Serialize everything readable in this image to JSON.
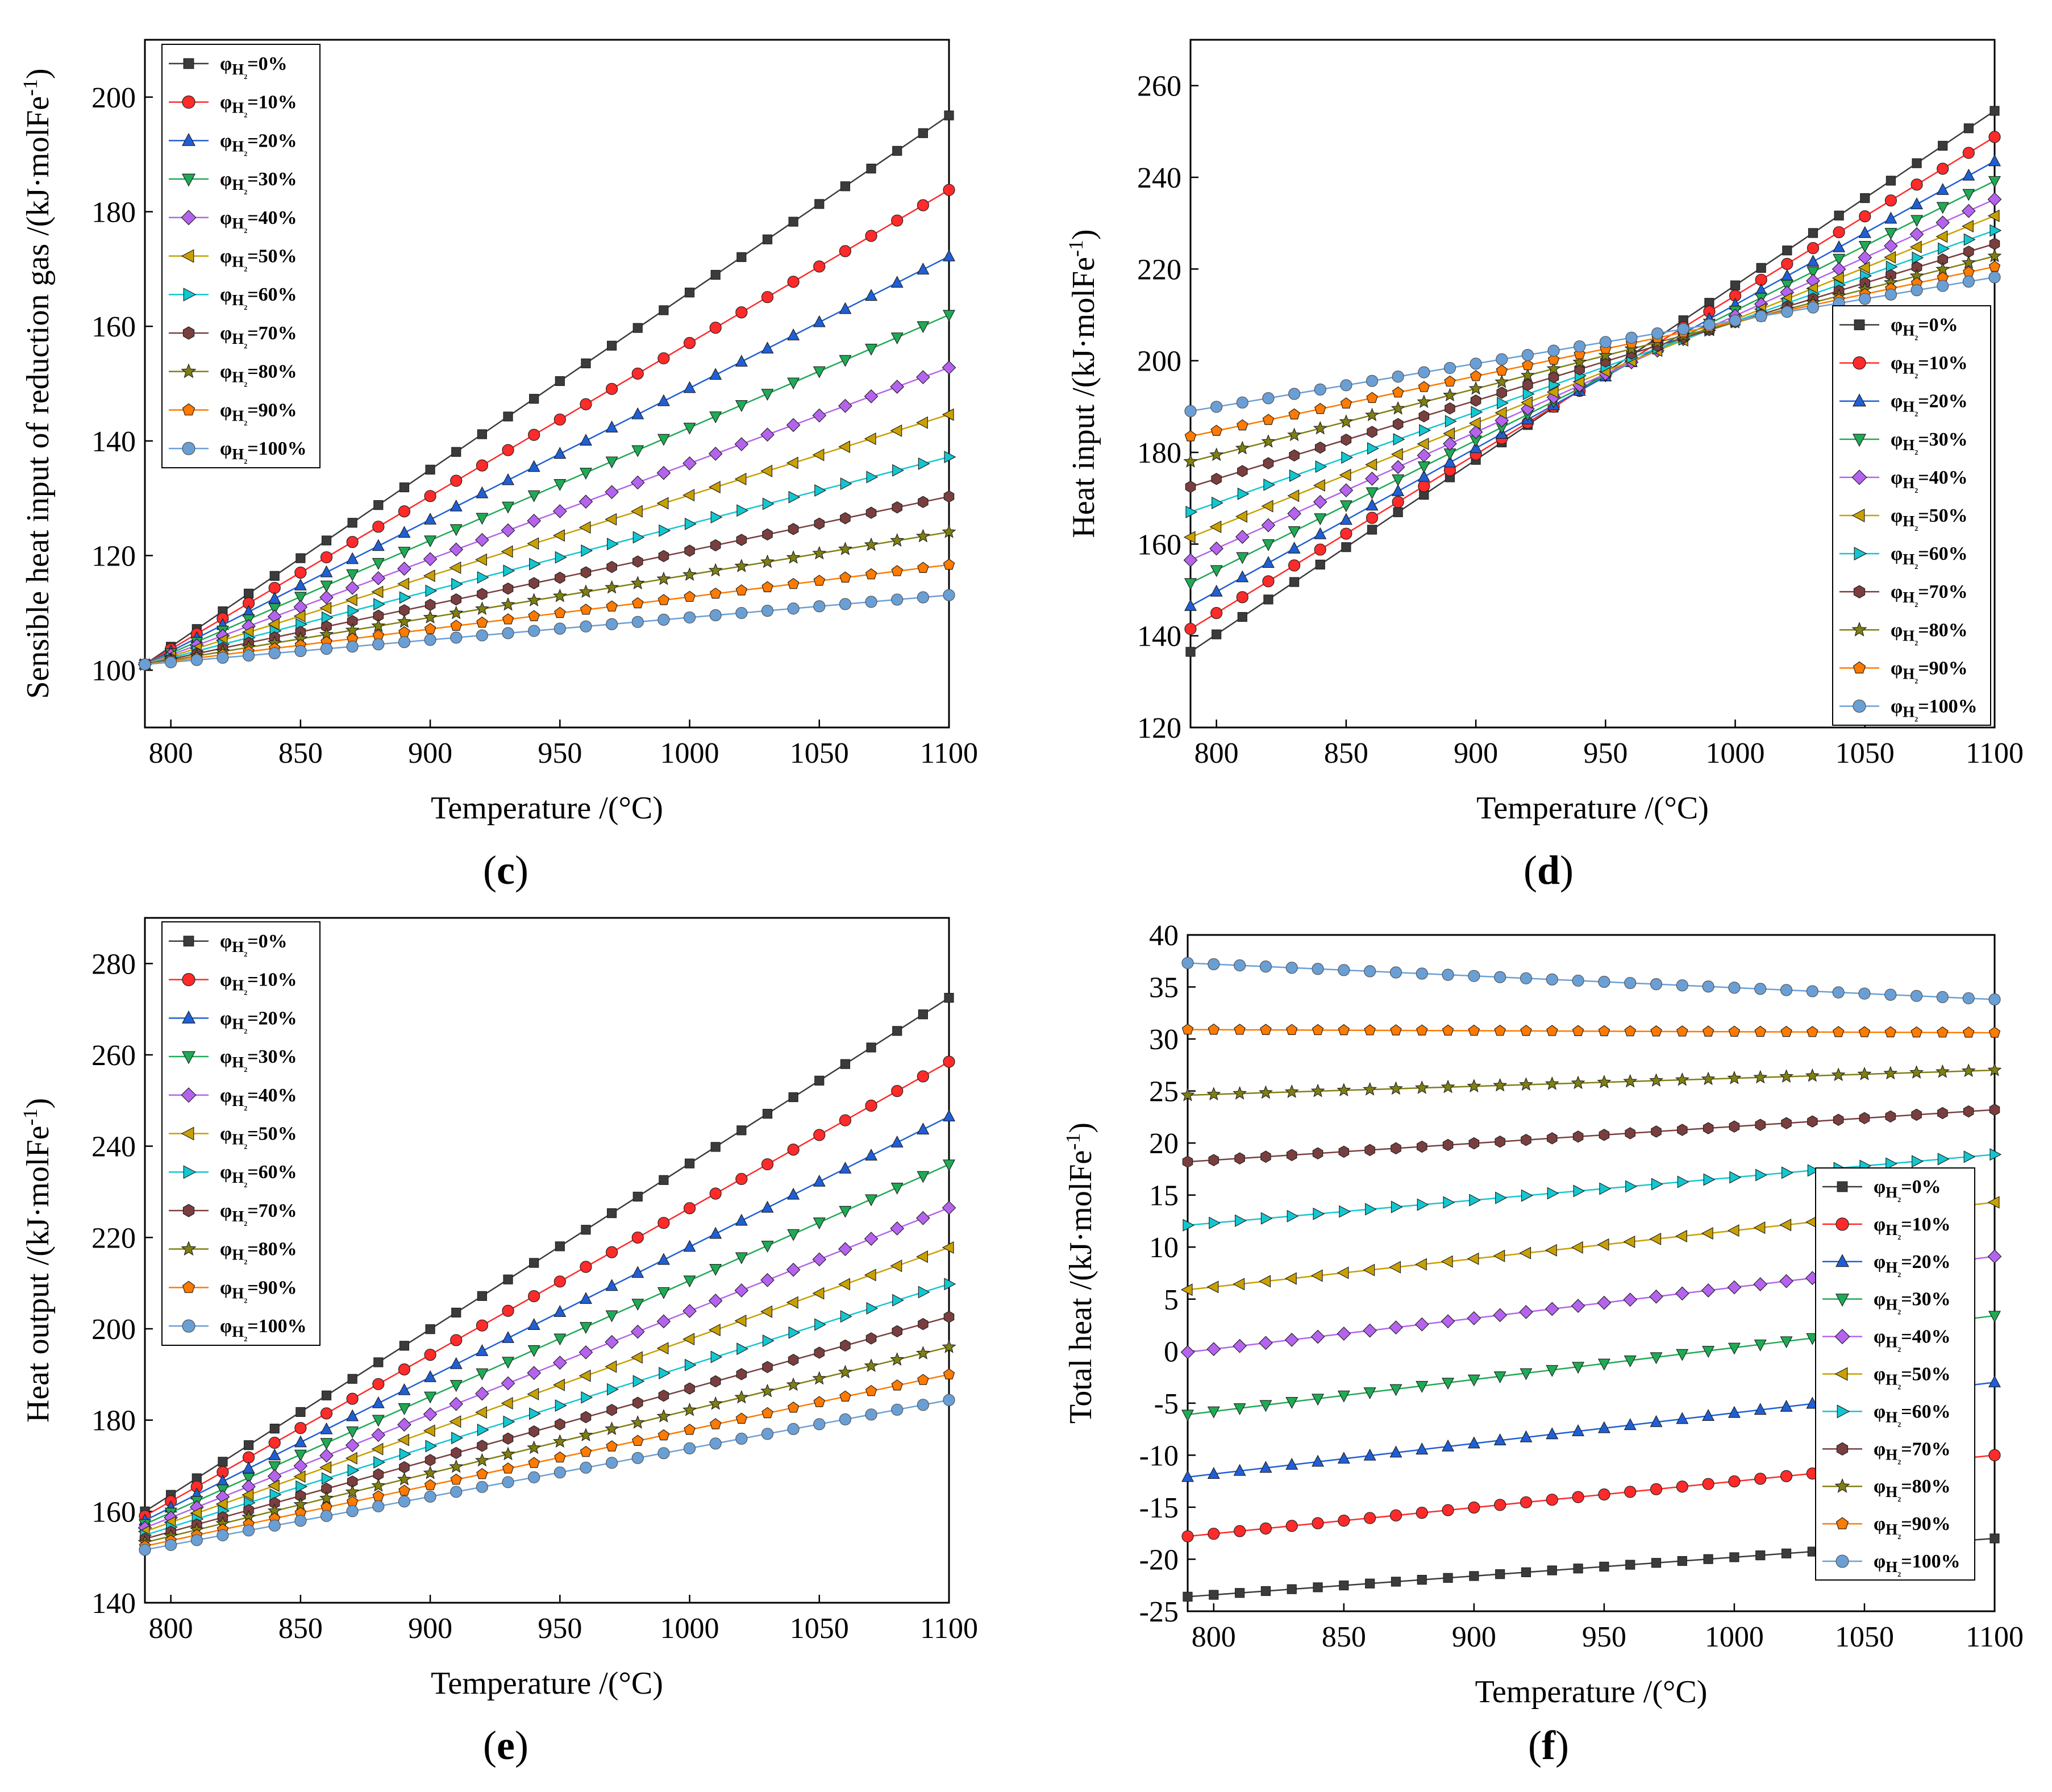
{
  "figure": {
    "panels": [
      "(c)",
      "(d)",
      "(e)",
      "(f)"
    ]
  },
  "chart_data": [
    {
      "type": "line",
      "panel_label": "(c)",
      "title": "",
      "xlabel": "Temperature /(°C)",
      "ylabel": "Sensible heat input of reduction gas /(kJ·molFe⁻¹)",
      "xlim": [
        790,
        1100
      ],
      "ylim": [
        90,
        210
      ],
      "xticks": [
        "800",
        "850",
        "900",
        "950",
        "1000",
        "1050",
        "1100"
      ],
      "yticks": [
        "100",
        "120",
        "140",
        "160",
        "180",
        "200"
      ],
      "legend_position": "top-left",
      "x_range": [
        790,
        1100
      ],
      "x_step": 10,
      "series": [
        {
          "name": "φH₂=0%",
          "start": 101,
          "end": 196.8
        },
        {
          "name": "φH₂=10%",
          "start": 101,
          "end": 183.8
        },
        {
          "name": "φH₂=20%",
          "start": 101,
          "end": 172.2
        },
        {
          "name": "φH₂=30%",
          "start": 101,
          "end": 162.0
        },
        {
          "name": "φH₂=40%",
          "start": 101,
          "end": 152.8
        },
        {
          "name": "φH₂=50%",
          "start": 101,
          "end": 144.6
        },
        {
          "name": "φH₂=60%",
          "start": 101,
          "end": 137.2
        },
        {
          "name": "φH₂=70%",
          "start": 101,
          "end": 130.3
        },
        {
          "name": "φH₂=80%",
          "start": 101,
          "end": 124.1
        },
        {
          "name": "φH₂=90%",
          "start": 101,
          "end": 118.4
        },
        {
          "name": "φH₂=100%",
          "start": 101,
          "end": 113.1
        }
      ]
    },
    {
      "type": "line",
      "panel_label": "(d)",
      "title": "",
      "xlabel": "Temperature /(°C)",
      "ylabel": "Heat input /(kJ·molFe⁻¹)",
      "xlim": [
        790,
        1100
      ],
      "ylim": [
        120,
        270
      ],
      "xticks": [
        "800",
        "850",
        "900",
        "950",
        "1000",
        "1050",
        "1100"
      ],
      "yticks": [
        "120",
        "140",
        "160",
        "180",
        "200",
        "220",
        "240",
        "260"
      ],
      "legend_position": "bottom-right",
      "x_range": [
        790,
        1100
      ],
      "x_step": 10,
      "series": [
        {
          "name": "φH₂=0%",
          "start": 136.5,
          "end": 254.5
        },
        {
          "name": "φH₂=10%",
          "start": 141.5,
          "end": 248.8
        },
        {
          "name": "φH₂=20%",
          "start": 146.5,
          "end": 243.5
        },
        {
          "name": "φH₂=30%",
          "start": 151.5,
          "end": 239.2
        },
        {
          "name": "φH₂=40%",
          "start": 156.5,
          "end": 235.2
        },
        {
          "name": "φH₂=50%",
          "start": 161.5,
          "end": 231.6
        },
        {
          "name": "φH₂=60%",
          "start": 167.0,
          "end": 228.4
        },
        {
          "name": "φH₂=70%",
          "start": 172.5,
          "end": 225.5
        },
        {
          "name": "φH₂=80%",
          "start": 178.0,
          "end": 222.8
        },
        {
          "name": "φH₂=90%",
          "start": 183.5,
          "end": 220.5
        },
        {
          "name": "φH₂=100%",
          "start": 189.0,
          "end": 218.2
        }
      ]
    },
    {
      "type": "line",
      "panel_label": "(e)",
      "title": "",
      "xlabel": "Temperature /(°C)",
      "ylabel": "Heat output /(kJ·molFe⁻¹)",
      "xlim": [
        790,
        1100
      ],
      "ylim": [
        140,
        290
      ],
      "xticks": [
        "800",
        "850",
        "900",
        "950",
        "1000",
        "1050",
        "1100"
      ],
      "yticks": [
        "140",
        "160",
        "180",
        "200",
        "220",
        "240",
        "260",
        "280"
      ],
      "legend_position": "top-left",
      "x_range": [
        790,
        1100
      ],
      "x_step": 10,
      "series": [
        {
          "name": "φH₂=0%",
          "start": 160.0,
          "end": 272.5
        },
        {
          "name": "φH₂=10%",
          "start": 159.0,
          "end": 258.5
        },
        {
          "name": "φH₂=20%",
          "start": 158.0,
          "end": 246.5
        },
        {
          "name": "φH₂=30%",
          "start": 157.2,
          "end": 236.0
        },
        {
          "name": "φH₂=40%",
          "start": 156.4,
          "end": 226.5
        },
        {
          "name": "φH₂=50%",
          "start": 155.6,
          "end": 217.8
        },
        {
          "name": "φH₂=60%",
          "start": 154.8,
          "end": 209.8
        },
        {
          "name": "φH₂=70%",
          "start": 154.0,
          "end": 202.6
        },
        {
          "name": "φH₂=80%",
          "start": 153.2,
          "end": 196.0
        },
        {
          "name": "φH₂=90%",
          "start": 152.4,
          "end": 190.0
        },
        {
          "name": "φH₂=100%",
          "start": 151.6,
          "end": 184.4
        }
      ]
    },
    {
      "type": "line",
      "panel_label": "(f)",
      "title": "",
      "xlabel": "Temperature /(°C)",
      "ylabel": "Total heat /(kJ·molFe⁻¹)",
      "xlim": [
        790,
        1100
      ],
      "ylim": [
        -25,
        40
      ],
      "xticks": [
        "800",
        "850",
        "900",
        "950",
        "1000",
        "1050",
        "1100"
      ],
      "yticks": [
        "-25",
        "-20",
        "-15",
        "-10",
        "-5",
        "0",
        "5",
        "10",
        "15",
        "20",
        "25",
        "30",
        "35",
        "40"
      ],
      "legend_position": "bottom-right",
      "x_range": [
        790,
        1100
      ],
      "x_step": 10,
      "series": [
        {
          "name": "φH₂=0%",
          "start": -23.6,
          "end": -18.0
        },
        {
          "name": "φH₂=10%",
          "start": -17.8,
          "end": -10.0
        },
        {
          "name": "φH₂=20%",
          "start": -12.1,
          "end": -3.0
        },
        {
          "name": "φH₂=30%",
          "start": -6.1,
          "end": 3.4
        },
        {
          "name": "φH₂=40%",
          "start": -0.1,
          "end": 9.1
        },
        {
          "name": "φH₂=50%",
          "start": 5.9,
          "end": 14.3
        },
        {
          "name": "φH₂=60%",
          "start": 12.1,
          "end": 18.9
        },
        {
          "name": "φH₂=70%",
          "start": 18.2,
          "end": 23.2
        },
        {
          "name": "φH₂=80%",
          "start": 24.6,
          "end": 27.0
        },
        {
          "name": "φH₂=90%",
          "start": 30.9,
          "end": 30.6
        },
        {
          "name": "φH₂=100%",
          "start": 37.3,
          "end": 33.8
        }
      ]
    }
  ],
  "series_styles": [
    {
      "color": "#3b3b3b",
      "marker": "square"
    },
    {
      "color": "#ff2a2a",
      "marker": "circle"
    },
    {
      "color": "#1f5fd6",
      "marker": "triangle-up"
    },
    {
      "color": "#1faa55",
      "marker": "triangle-down"
    },
    {
      "color": "#b563ee",
      "marker": "diamond"
    },
    {
      "color": "#c9a000",
      "marker": "triangle-left"
    },
    {
      "color": "#13c7d1",
      "marker": "triangle-right"
    },
    {
      "color": "#7a3e3e",
      "marker": "hexagon"
    },
    {
      "color": "#7f7f12",
      "marker": "star"
    },
    {
      "color": "#ff7a00",
      "marker": "pentagon"
    },
    {
      "color": "#6a9fd6",
      "marker": "sphere"
    }
  ]
}
